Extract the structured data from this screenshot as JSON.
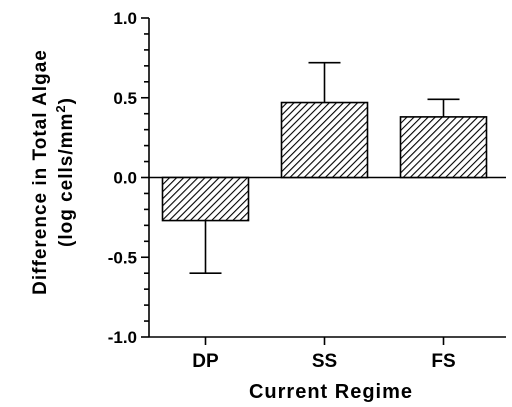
{
  "chart_data": {
    "type": "bar",
    "categories": [
      "DP",
      "SS",
      "FS"
    ],
    "values": [
      -0.27,
      0.47,
      0.38
    ],
    "error_upper": [
      -0.6,
      0.72,
      0.49
    ],
    "ylim": [
      -1.0,
      1.0
    ],
    "yticks": [
      "1.0",
      "0.5",
      "0.0",
      "-0.5",
      "-1.0"
    ],
    "ytick_values": [
      1.0,
      0.5,
      0.0,
      -0.5,
      -1.0
    ],
    "xlabel": "Current Regime",
    "ylabel_line1": "Difference in Total Algae",
    "ylabel_line2": "(log cells/mm",
    "ylabel_sup": "2",
    "ylabel_close": ")",
    "fill_pattern": "diagonal-hatch"
  }
}
